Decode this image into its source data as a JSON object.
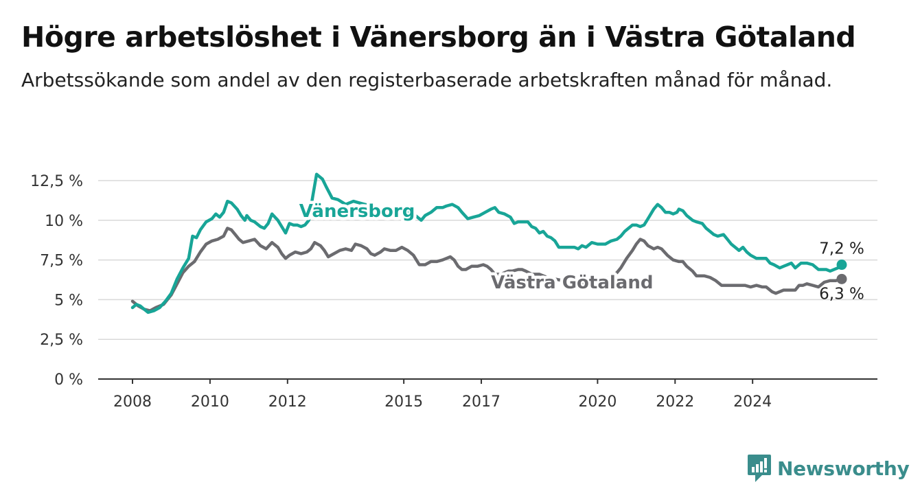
{
  "title": "Högre arbetslöshet i Vänersborg än i Västra Götaland",
  "subtitle": "Arbetssökande som andel av den registerbaserade arbetskraften månad för månad.",
  "brand": {
    "name": "Newsworthy",
    "icon": "newsworthy-logo-icon",
    "color": "#3a8d8c"
  },
  "chart_data": {
    "type": "line",
    "y_ticks": [
      0,
      2.5,
      5,
      7.5,
      10,
      12.5
    ],
    "y_tick_labels": [
      "0 %",
      "2,5 %",
      "5 %",
      "7,5 %",
      "10 %",
      "12,5 %"
    ],
    "ylim": [
      0,
      12.5
    ],
    "x_ticks": [
      2008,
      2010,
      2012,
      2015,
      2017,
      2020,
      2022,
      2024
    ],
    "x_tick_labels": [
      "2008",
      "2010",
      "2012",
      "2015",
      "2017",
      "2020",
      "2022",
      "2024"
    ],
    "grid": true,
    "colors": {
      "vanersborg": "#18a597",
      "vastra": "#6b6b6f",
      "grid": "#d9d9d9",
      "axis": "#333333"
    },
    "series": [
      {
        "name": "Vänersborg",
        "label_text": "Vänersborg",
        "end_label": "7,2 %",
        "color": "#18a597",
        "points": [
          [
            2008.0,
            4.5
          ],
          [
            2008.1,
            4.7
          ],
          [
            2008.2,
            4.6
          ],
          [
            2008.3,
            4.4
          ],
          [
            2008.4,
            4.2
          ],
          [
            2008.55,
            4.3
          ],
          [
            2008.7,
            4.5
          ],
          [
            2008.85,
            4.9
          ],
          [
            2009.0,
            5.4
          ],
          [
            2009.15,
            6.3
          ],
          [
            2009.3,
            7.0
          ],
          [
            2009.45,
            7.6
          ],
          [
            2009.55,
            9.0
          ],
          [
            2009.65,
            8.9
          ],
          [
            2009.75,
            9.4
          ],
          [
            2009.9,
            9.9
          ],
          [
            2010.05,
            10.1
          ],
          [
            2010.15,
            10.4
          ],
          [
            2010.25,
            10.2
          ],
          [
            2010.35,
            10.5
          ],
          [
            2010.45,
            11.2
          ],
          [
            2010.55,
            11.1
          ],
          [
            2010.7,
            10.7
          ],
          [
            2010.8,
            10.3
          ],
          [
            2010.9,
            10.0
          ],
          [
            2010.95,
            10.3
          ],
          [
            2011.05,
            10.0
          ],
          [
            2011.15,
            9.9
          ],
          [
            2011.3,
            9.6
          ],
          [
            2011.4,
            9.5
          ],
          [
            2011.5,
            9.8
          ],
          [
            2011.6,
            10.4
          ],
          [
            2011.75,
            10.0
          ],
          [
            2011.85,
            9.6
          ],
          [
            2011.95,
            9.2
          ],
          [
            2012.05,
            9.8
          ],
          [
            2012.15,
            9.7
          ],
          [
            2012.25,
            9.7
          ],
          [
            2012.35,
            9.6
          ],
          [
            2012.45,
            9.7
          ],
          [
            2012.55,
            10.0
          ],
          [
            2012.65,
            11.5
          ],
          [
            2012.75,
            12.9
          ],
          [
            2012.9,
            12.6
          ],
          [
            2013.0,
            12.1
          ],
          [
            2013.15,
            11.4
          ],
          [
            2013.3,
            11.3
          ],
          [
            2013.5,
            11.0
          ],
          [
            2013.7,
            11.2
          ],
          [
            2013.85,
            11.1
          ],
          [
            2014.0,
            11.0
          ],
          [
            2014.2,
            10.9
          ],
          [
            2014.4,
            10.7
          ],
          [
            2014.6,
            10.8
          ],
          [
            2014.8,
            10.7
          ],
          [
            2015.0,
            10.8
          ],
          [
            2015.15,
            10.4
          ],
          [
            2015.3,
            10.3
          ],
          [
            2015.45,
            10.0
          ],
          [
            2015.55,
            10.3
          ],
          [
            2015.7,
            10.5
          ],
          [
            2015.85,
            10.8
          ],
          [
            2016.0,
            10.8
          ],
          [
            2016.1,
            10.9
          ],
          [
            2016.25,
            11.0
          ],
          [
            2016.4,
            10.8
          ],
          [
            2016.5,
            10.5
          ],
          [
            2016.65,
            10.1
          ],
          [
            2016.8,
            10.2
          ],
          [
            2016.95,
            10.3
          ],
          [
            2017.1,
            10.5
          ],
          [
            2017.25,
            10.7
          ],
          [
            2017.35,
            10.8
          ],
          [
            2017.45,
            10.5
          ],
          [
            2017.6,
            10.4
          ],
          [
            2017.75,
            10.2
          ],
          [
            2017.85,
            9.8
          ],
          [
            2017.95,
            9.9
          ],
          [
            2018.1,
            9.9
          ],
          [
            2018.2,
            9.9
          ],
          [
            2018.3,
            9.6
          ],
          [
            2018.4,
            9.5
          ],
          [
            2018.5,
            9.2
          ],
          [
            2018.6,
            9.3
          ],
          [
            2018.7,
            9.0
          ],
          [
            2018.8,
            8.9
          ],
          [
            2018.9,
            8.7
          ],
          [
            2019.0,
            8.3
          ],
          [
            2019.15,
            8.3
          ],
          [
            2019.3,
            8.3
          ],
          [
            2019.4,
            8.3
          ],
          [
            2019.5,
            8.2
          ],
          [
            2019.6,
            8.4
          ],
          [
            2019.7,
            8.3
          ],
          [
            2019.85,
            8.6
          ],
          [
            2020.0,
            8.5
          ],
          [
            2020.1,
            8.5
          ],
          [
            2020.2,
            8.5
          ],
          [
            2020.35,
            8.7
          ],
          [
            2020.5,
            8.8
          ],
          [
            2020.6,
            9.0
          ],
          [
            2020.7,
            9.3
          ],
          [
            2020.8,
            9.5
          ],
          [
            2020.9,
            9.7
          ],
          [
            2021.0,
            9.7
          ],
          [
            2021.1,
            9.6
          ],
          [
            2021.2,
            9.7
          ],
          [
            2021.3,
            10.1
          ],
          [
            2021.45,
            10.7
          ],
          [
            2021.55,
            11.0
          ],
          [
            2021.65,
            10.8
          ],
          [
            2021.75,
            10.5
          ],
          [
            2021.85,
            10.5
          ],
          [
            2021.95,
            10.4
          ],
          [
            2022.05,
            10.5
          ],
          [
            2022.1,
            10.7
          ],
          [
            2022.2,
            10.6
          ],
          [
            2022.3,
            10.3
          ],
          [
            2022.45,
            10.0
          ],
          [
            2022.55,
            9.9
          ],
          [
            2022.7,
            9.8
          ],
          [
            2022.8,
            9.5
          ],
          [
            2022.9,
            9.3
          ],
          [
            2023.0,
            9.1
          ],
          [
            2023.1,
            9.0
          ],
          [
            2023.25,
            9.1
          ],
          [
            2023.35,
            8.8
          ],
          [
            2023.45,
            8.5
          ],
          [
            2023.55,
            8.3
          ],
          [
            2023.65,
            8.1
          ],
          [
            2023.75,
            8.3
          ],
          [
            2023.85,
            8.0
          ],
          [
            2023.95,
            7.8
          ],
          [
            2024.1,
            7.6
          ],
          [
            2024.25,
            7.6
          ],
          [
            2024.35,
            7.6
          ],
          [
            2024.45,
            7.3
          ],
          [
            2024.55,
            7.2
          ],
          [
            2024.7,
            7.0
          ],
          [
            2024.8,
            7.1
          ],
          [
            2024.9,
            7.2
          ],
          [
            2025.0,
            7.3
          ],
          [
            2025.1,
            7.0
          ],
          [
            2025.25,
            7.3
          ],
          [
            2025.4,
            7.3
          ],
          [
            2025.55,
            7.2
          ],
          [
            2025.7,
            6.9
          ],
          [
            2025.9,
            6.9
          ],
          [
            2026.0,
            6.8
          ],
          [
            2026.2,
            7.0
          ],
          [
            2026.3,
            7.2
          ]
        ]
      },
      {
        "name": "Västra Götaland",
        "label_text": "Västra Götaland",
        "end_label": "6,3 %",
        "color": "#6b6b6f",
        "points": [
          [
            2008.0,
            4.9
          ],
          [
            2008.15,
            4.6
          ],
          [
            2008.3,
            4.4
          ],
          [
            2008.45,
            4.3
          ],
          [
            2008.6,
            4.5
          ],
          [
            2008.8,
            4.7
          ],
          [
            2009.0,
            5.3
          ],
          [
            2009.15,
            6.0
          ],
          [
            2009.3,
            6.7
          ],
          [
            2009.45,
            7.1
          ],
          [
            2009.6,
            7.4
          ],
          [
            2009.75,
            8.0
          ],
          [
            2009.9,
            8.5
          ],
          [
            2010.05,
            8.7
          ],
          [
            2010.2,
            8.8
          ],
          [
            2010.35,
            9.0
          ],
          [
            2010.45,
            9.5
          ],
          [
            2010.55,
            9.4
          ],
          [
            2010.65,
            9.1
          ],
          [
            2010.75,
            8.8
          ],
          [
            2010.85,
            8.6
          ],
          [
            2011.0,
            8.7
          ],
          [
            2011.15,
            8.8
          ],
          [
            2011.3,
            8.4
          ],
          [
            2011.45,
            8.2
          ],
          [
            2011.6,
            8.6
          ],
          [
            2011.75,
            8.3
          ],
          [
            2011.85,
            7.9
          ],
          [
            2011.95,
            7.6
          ],
          [
            2012.05,
            7.8
          ],
          [
            2012.2,
            8.0
          ],
          [
            2012.35,
            7.9
          ],
          [
            2012.5,
            8.0
          ],
          [
            2012.6,
            8.2
          ],
          [
            2012.7,
            8.6
          ],
          [
            2012.85,
            8.4
          ],
          [
            2012.95,
            8.1
          ],
          [
            2013.05,
            7.7
          ],
          [
            2013.2,
            7.9
          ],
          [
            2013.35,
            8.1
          ],
          [
            2013.5,
            8.2
          ],
          [
            2013.65,
            8.1
          ],
          [
            2013.75,
            8.5
          ],
          [
            2013.9,
            8.4
          ],
          [
            2014.05,
            8.2
          ],
          [
            2014.15,
            7.9
          ],
          [
            2014.25,
            7.8
          ],
          [
            2014.4,
            8.0
          ],
          [
            2014.5,
            8.2
          ],
          [
            2014.65,
            8.1
          ],
          [
            2014.8,
            8.1
          ],
          [
            2014.95,
            8.3
          ],
          [
            2015.1,
            8.1
          ],
          [
            2015.25,
            7.8
          ],
          [
            2015.4,
            7.2
          ],
          [
            2015.55,
            7.2
          ],
          [
            2015.7,
            7.4
          ],
          [
            2015.85,
            7.4
          ],
          [
            2016.0,
            7.5
          ],
          [
            2016.1,
            7.6
          ],
          [
            2016.2,
            7.7
          ],
          [
            2016.3,
            7.5
          ],
          [
            2016.4,
            7.1
          ],
          [
            2016.5,
            6.9
          ],
          [
            2016.6,
            6.9
          ],
          [
            2016.75,
            7.1
          ],
          [
            2016.9,
            7.1
          ],
          [
            2017.05,
            7.2
          ],
          [
            2017.15,
            7.1
          ],
          [
            2017.25,
            6.9
          ],
          [
            2017.35,
            6.6
          ],
          [
            2017.5,
            6.6
          ],
          [
            2017.6,
            6.7
          ],
          [
            2017.7,
            6.8
          ],
          [
            2017.8,
            6.8
          ],
          [
            2017.95,
            6.9
          ],
          [
            2018.05,
            6.9
          ],
          [
            2018.15,
            6.8
          ],
          [
            2018.3,
            6.6
          ],
          [
            2018.5,
            6.6
          ],
          [
            2018.7,
            6.4
          ],
          [
            2018.9,
            6.3
          ],
          [
            2019.1,
            6.2
          ],
          [
            2019.3,
            6.1
          ],
          [
            2019.5,
            6.0
          ],
          [
            2019.7,
            6.0
          ],
          [
            2019.9,
            6.0
          ],
          [
            2020.1,
            6.1
          ],
          [
            2020.3,
            6.4
          ],
          [
            2020.5,
            6.7
          ],
          [
            2020.6,
            7.0
          ],
          [
            2020.75,
            7.6
          ],
          [
            2020.9,
            8.1
          ],
          [
            2021.0,
            8.5
          ],
          [
            2021.1,
            8.8
          ],
          [
            2021.2,
            8.7
          ],
          [
            2021.3,
            8.4
          ],
          [
            2021.45,
            8.2
          ],
          [
            2021.55,
            8.3
          ],
          [
            2021.65,
            8.2
          ],
          [
            2021.8,
            7.8
          ],
          [
            2021.95,
            7.5
          ],
          [
            2022.1,
            7.4
          ],
          [
            2022.2,
            7.4
          ],
          [
            2022.3,
            7.1
          ],
          [
            2022.45,
            6.8
          ],
          [
            2022.55,
            6.5
          ],
          [
            2022.75,
            6.5
          ],
          [
            2022.9,
            6.4
          ],
          [
            2023.05,
            6.2
          ],
          [
            2023.2,
            5.9
          ],
          [
            2023.5,
            5.9
          ],
          [
            2023.8,
            5.9
          ],
          [
            2023.95,
            5.8
          ],
          [
            2024.1,
            5.9
          ],
          [
            2024.25,
            5.8
          ],
          [
            2024.35,
            5.8
          ],
          [
            2024.5,
            5.5
          ],
          [
            2024.6,
            5.4
          ],
          [
            2024.7,
            5.5
          ],
          [
            2024.8,
            5.6
          ],
          [
            2024.95,
            5.6
          ],
          [
            2025.1,
            5.6
          ],
          [
            2025.2,
            5.9
          ],
          [
            2025.3,
            5.9
          ],
          [
            2025.4,
            6.0
          ],
          [
            2025.55,
            5.9
          ],
          [
            2025.7,
            5.8
          ],
          [
            2025.85,
            6.1
          ],
          [
            2026.0,
            6.2
          ],
          [
            2026.15,
            6.2
          ],
          [
            2026.3,
            6.3
          ]
        ]
      }
    ]
  }
}
